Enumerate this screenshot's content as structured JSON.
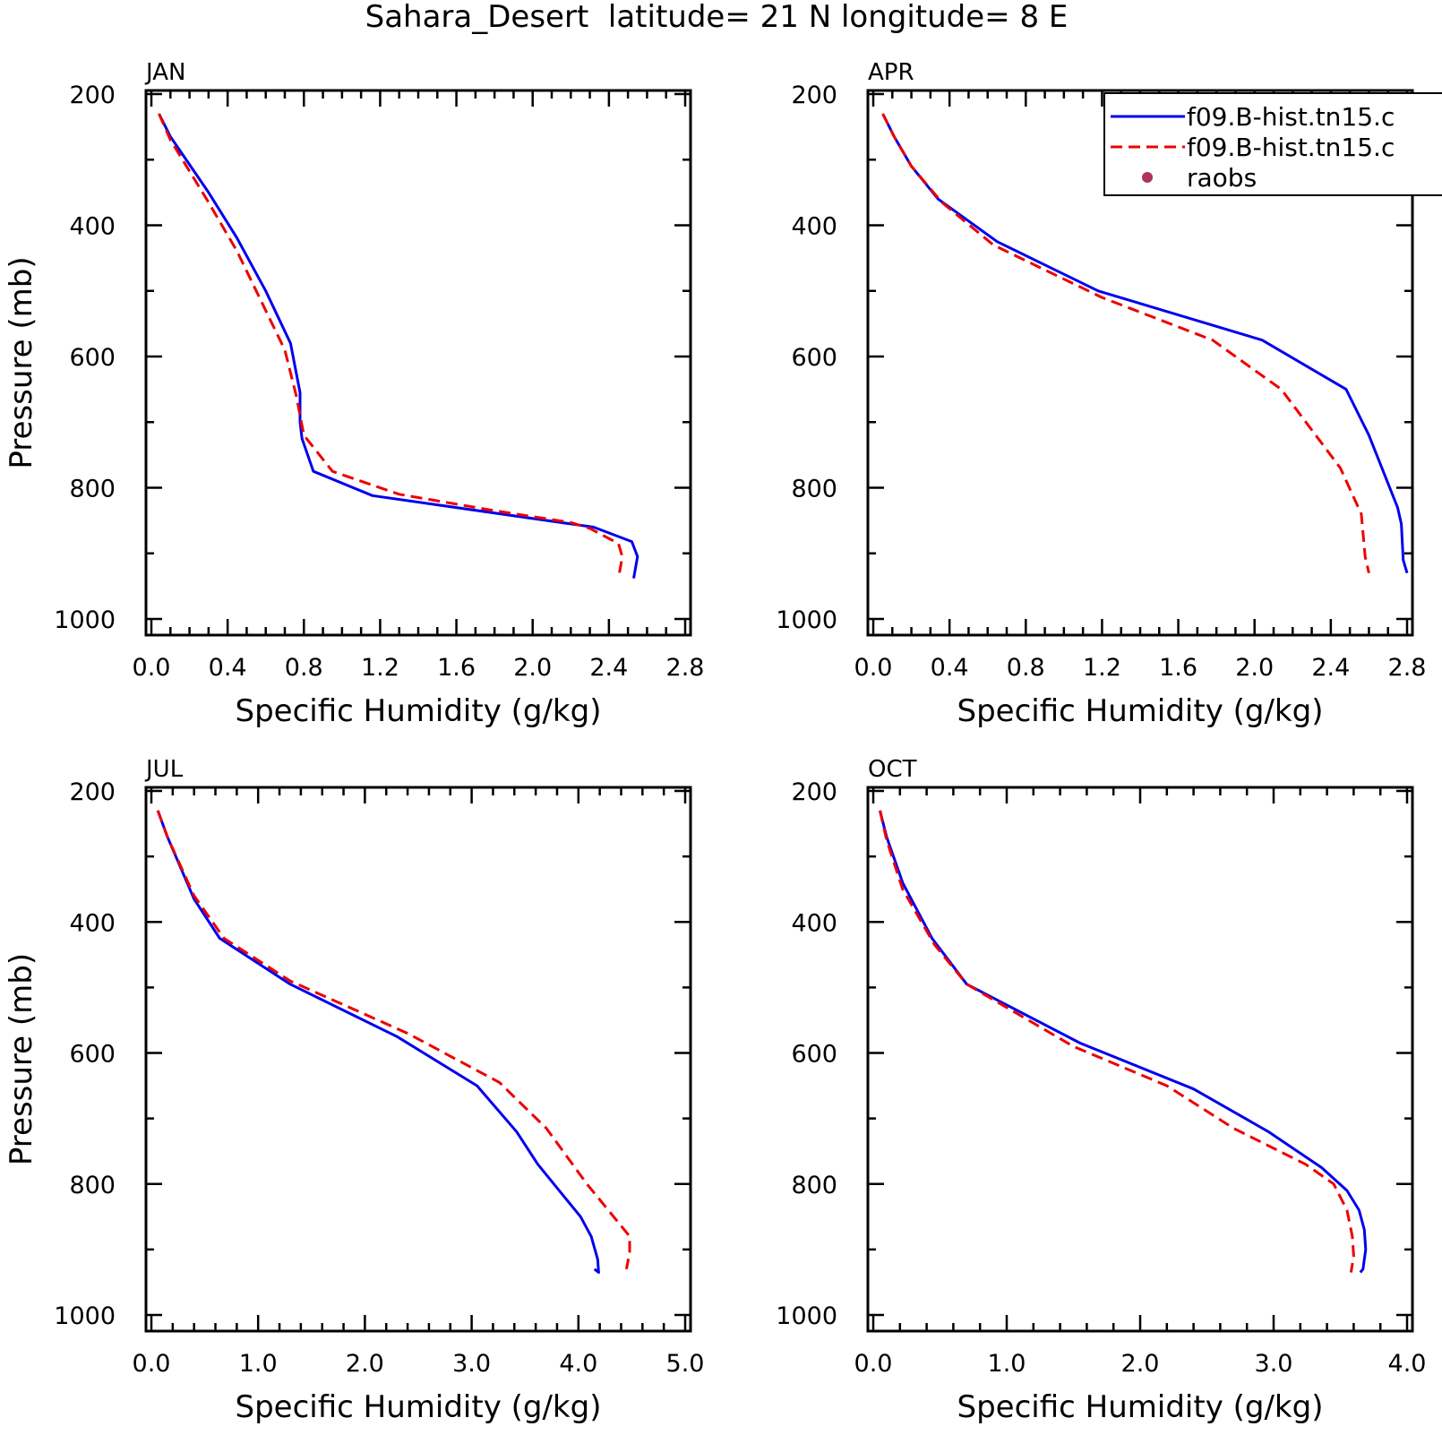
{
  "figure_title": "Sahara_Desert  latitude= 21 N longitude= 8 E",
  "legend": {
    "entries": [
      {
        "label": "f09.B-hist.tn15.c",
        "color": "#0000ee",
        "style": "solid"
      },
      {
        "label": "f09.B-hist.tn15.c",
        "color": "#ee0000",
        "style": "dashed"
      },
      {
        "label": "raobs",
        "color": "#b03060",
        "style": "marker"
      }
    ]
  },
  "chart_data": [
    {
      "type": "line",
      "panel_label": "JAN",
      "xlabel": "Specific Humidity (g/kg)",
      "ylabel": "Pressure (mb)",
      "xlim": [
        0,
        2.8
      ],
      "ylim": [
        1000,
        200
      ],
      "y_reversed": true,
      "xticks": [
        "0.0",
        "0.4",
        "0.8",
        "1.2",
        "1.6",
        "2.0",
        "2.4",
        "2.8"
      ],
      "yticks": [
        "200",
        "400",
        "600",
        "800",
        "1000"
      ],
      "series": [
        {
          "color": "#0000ee",
          "dash": "solid",
          "x": [
            0.04,
            0.1,
            0.3,
            0.45,
            0.6,
            0.73,
            0.78,
            0.78,
            0.79,
            0.85,
            1.16,
            2.32,
            2.52,
            2.55,
            2.53
          ],
          "y": [
            230,
            265,
            350,
            420,
            500,
            580,
            655,
            700,
            725,
            775,
            812,
            860,
            882,
            905,
            938
          ]
        },
        {
          "color": "#ee0000",
          "dash": "dashed",
          "x": [
            0.04,
            0.1,
            0.3,
            0.45,
            0.6,
            0.7,
            0.76,
            0.8,
            0.95,
            1.3,
            1.8,
            2.2,
            2.3,
            2.45,
            2.47,
            2.45
          ],
          "y": [
            230,
            270,
            365,
            440,
            530,
            590,
            660,
            720,
            775,
            810,
            835,
            853,
            862,
            885,
            905,
            938
          ]
        }
      ]
    },
    {
      "type": "line",
      "panel_label": "APR",
      "xlabel": "Specific Humidity (g/kg)",
      "ylabel": "",
      "xlim": [
        0,
        2.8
      ],
      "ylim": [
        1000,
        200
      ],
      "y_reversed": true,
      "xticks": [
        "0.0",
        "0.4",
        "0.8",
        "1.2",
        "1.6",
        "2.0",
        "2.4",
        "2.8"
      ],
      "yticks": [
        "200",
        "400",
        "600",
        "800",
        "1000"
      ],
      "series": [
        {
          "color": "#0000ee",
          "dash": "solid",
          "x": [
            0.05,
            0.11,
            0.2,
            0.34,
            0.65,
            1.18,
            2.04,
            2.48,
            2.6,
            2.75,
            2.77,
            2.78,
            2.8
          ],
          "y": [
            230,
            265,
            310,
            360,
            425,
            500,
            575,
            650,
            720,
            830,
            855,
            910,
            930
          ]
        },
        {
          "color": "#ee0000",
          "dash": "dashed",
          "x": [
            0.05,
            0.11,
            0.2,
            0.36,
            0.63,
            1.2,
            1.78,
            2.14,
            2.45,
            2.56,
            2.58,
            2.6
          ],
          "y": [
            230,
            265,
            310,
            365,
            430,
            510,
            575,
            650,
            770,
            840,
            905,
            930
          ]
        }
      ]
    },
    {
      "type": "line",
      "panel_label": "JUL",
      "xlabel": "Specific Humidity (g/kg)",
      "ylabel": "Pressure (mb)",
      "xlim": [
        0,
        5
      ],
      "ylim": [
        1000,
        200
      ],
      "y_reversed": true,
      "xticks": [
        "0.0",
        "1.0",
        "2.0",
        "3.0",
        "4.0",
        "5.0"
      ],
      "yticks": [
        "200",
        "400",
        "600",
        "800",
        "1000"
      ],
      "series": [
        {
          "color": "#0000ee",
          "dash": "solid",
          "x": [
            0.06,
            0.15,
            0.4,
            0.64,
            1.3,
            2.3,
            3.05,
            3.42,
            3.62,
            3.82,
            4.02,
            4.12,
            4.18,
            4.19,
            4.15
          ],
          "y": [
            230,
            270,
            365,
            425,
            495,
            575,
            650,
            720,
            770,
            810,
            850,
            880,
            915,
            935,
            930
          ]
        },
        {
          "color": "#ee0000",
          "dash": "dashed",
          "x": [
            0.06,
            0.15,
            0.4,
            0.68,
            1.3,
            2.4,
            3.26,
            3.7,
            4.08,
            4.38,
            4.48,
            4.48,
            4.45
          ],
          "y": [
            230,
            270,
            360,
            425,
            490,
            570,
            645,
            715,
            800,
            860,
            880,
            905,
            930
          ]
        }
      ]
    },
    {
      "type": "line",
      "panel_label": "OCT",
      "xlabel": "Specific Humidity (g/kg)",
      "ylabel": "",
      "xlim": [
        0,
        4
      ],
      "ylim": [
        1000,
        200
      ],
      "y_reversed": true,
      "xticks": [
        "0.0",
        "1.0",
        "2.0",
        "3.0",
        "4.0"
      ],
      "yticks": [
        "200",
        "400",
        "600",
        "800",
        "1000"
      ],
      "series": [
        {
          "color": "#0000ee",
          "dash": "solid",
          "x": [
            0.05,
            0.1,
            0.22,
            0.44,
            0.7,
            1.55,
            2.4,
            2.96,
            3.36,
            3.55,
            3.64,
            3.68,
            3.69,
            3.67,
            3.65
          ],
          "y": [
            230,
            270,
            340,
            425,
            495,
            585,
            655,
            720,
            775,
            810,
            840,
            870,
            900,
            930,
            935
          ]
        },
        {
          "color": "#ee0000",
          "dash": "dashed",
          "x": [
            0.05,
            0.1,
            0.22,
            0.46,
            0.7,
            1.5,
            2.2,
            2.7,
            3.24,
            3.45,
            3.55,
            3.59,
            3.6,
            3.58
          ],
          "y": [
            230,
            275,
            350,
            435,
            495,
            590,
            650,
            715,
            770,
            800,
            840,
            880,
            910,
            935
          ]
        }
      ]
    }
  ]
}
